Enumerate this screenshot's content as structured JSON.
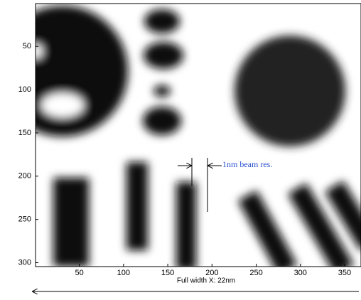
{
  "chart_data": {
    "type": "image",
    "xlim": [
      0.5,
      368.5
    ],
    "ylim": [
      0.5,
      304.5
    ],
    "y_reversed": true,
    "xticks": [
      50,
      100,
      150,
      200,
      250,
      300,
      350
    ],
    "yticks": [
      50,
      100,
      150,
      200,
      250,
      300
    ],
    "annotation": "1nm beam res.",
    "xlabel": "Full width X: 22nm"
  }
}
